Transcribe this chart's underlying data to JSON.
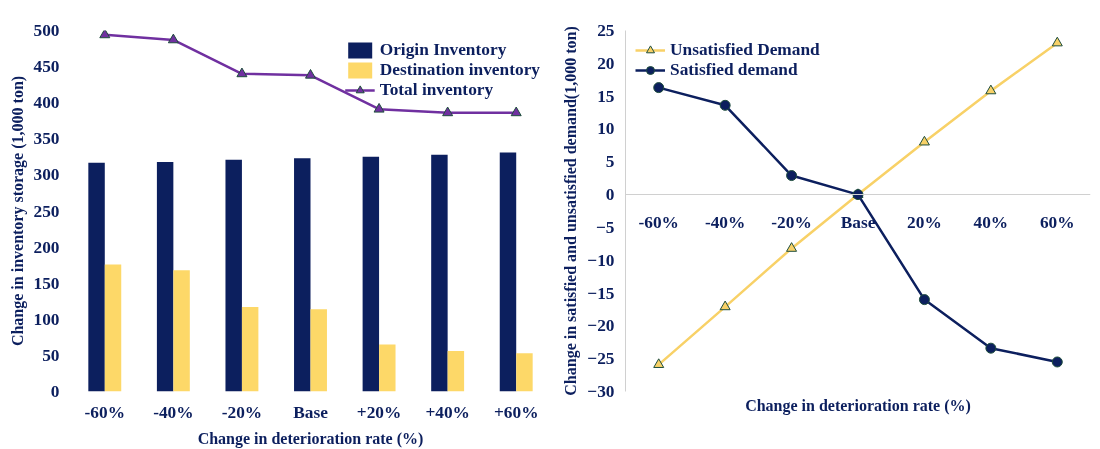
{
  "chart_data": [
    {
      "type": "bar",
      "xlabel": "Change in deterioration rate (%)",
      "ylabel": "Change in inventory storage (1,000 ton)",
      "categories": [
        "-60%",
        "-40%",
        "-20%",
        "Base",
        "+20%",
        "+40%",
        "+60%"
      ],
      "series": [
        {
          "name": "Origin Inventory",
          "color": "#0c1f5e",
          "values": [
            317,
            318,
            321,
            323,
            325,
            328,
            331
          ]
        },
        {
          "name": "Destination inventory",
          "color": "#fdd868",
          "values": [
            176,
            168,
            117,
            114,
            65,
            56,
            53
          ]
        },
        {
          "name": "Total inventory",
          "type": "line",
          "marker": "triangle",
          "color": "#7030a0",
          "values": [
            494,
            487,
            440,
            438,
            391,
            386,
            386
          ]
        }
      ],
      "ylim": [
        0,
        500
      ],
      "yticks": [
        0,
        50,
        100,
        150,
        200,
        250,
        300,
        350,
        400,
        450,
        500
      ],
      "grid": false,
      "legend": "top right"
    },
    {
      "type": "line",
      "xlabel": "Change in deterioration rate (%)",
      "ylabel": "Change in satisfied and unsatisfied demand(1,000 ton)",
      "categories": [
        "-60%",
        "-40%",
        "-20%",
        "Base",
        "20%",
        "40%",
        "60%"
      ],
      "series": [
        {
          "name": "Unsatisfied Demand",
          "marker": "triangle",
          "color": "#f8d167",
          "values": [
            -25.9,
            -17.1,
            -8.2,
            0,
            8.0,
            15.8,
            23.1
          ]
        },
        {
          "name": "Satisfied demand",
          "marker": "circle",
          "color": "#0c1f5e",
          "values": [
            16.3,
            13.6,
            2.9,
            0,
            -16.0,
            -23.4,
            -25.5
          ]
        }
      ],
      "ylim": [
        -30,
        25
      ],
      "yticks": [
        -30,
        -25,
        -20,
        -15,
        -10,
        -5,
        0,
        5,
        10,
        15,
        20,
        25
      ],
      "grid": false,
      "legend": "top left"
    }
  ]
}
